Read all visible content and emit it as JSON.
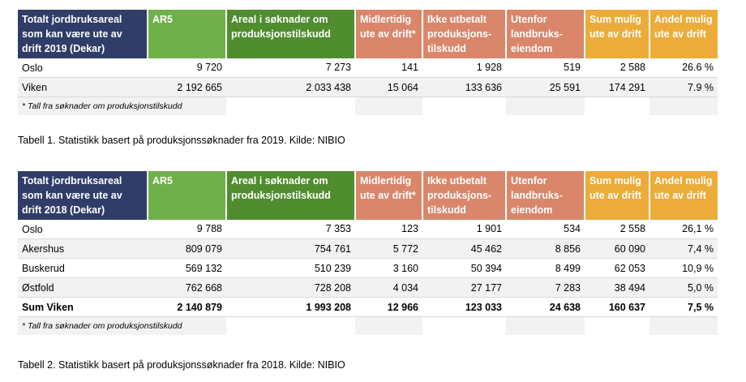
{
  "table1": {
    "headers": [
      "Totalt jordbruksareal som kan være ute av drift 2019 (Dekar)",
      "AR5",
      "Areal i søknader om produksjonstilskudd",
      "Midlertidig ute av drift*",
      "Ikke utbetalt produksjons-tilskudd",
      "Utenfor landbruks-eiendom",
      "Sum mulig ute av drift",
      "Andel mulig ute av drift"
    ],
    "rows": [
      [
        "Oslo",
        "9 720",
        "7 273",
        "141",
        "1 928",
        "519",
        "2 588",
        "26.6 %"
      ],
      [
        "Viken",
        "2 192 665",
        "2 033 438",
        "15 064",
        "133 636",
        "25 591",
        "174 291",
        "7.9 %"
      ]
    ],
    "note": "* Tall fra søknader om produksjonstilskudd",
    "caption": "Tabell 1. Statistikk basert på produksjonssøknader fra 2019. Kilde: NIBIO"
  },
  "table2": {
    "headers": [
      "Totalt jordbruksareal som kan være ute av drift 2018 (Dekar)",
      "AR5",
      "Areal i søknader om produksjonstilskudd",
      "Midlertidig ute av drift*",
      "Ikke utbetalt produksjons-tilskudd",
      "Utenfor landbruks-eiendom",
      "Sum mulig ute av drift",
      "Andel mulig ute av drift"
    ],
    "rows": [
      [
        "Oslo",
        "9 788",
        "7 353",
        "123",
        "1 901",
        "534",
        "2 558",
        "26,1 %"
      ],
      [
        "Akershus",
        "809 079",
        "754 761",
        "5 772",
        "45 462",
        "8 856",
        "60 090",
        "7,4 %"
      ],
      [
        "Buskerud",
        "569 132",
        "510 239",
        "3 160",
        "50 394",
        "8 499",
        "62 053",
        "10,9 %"
      ],
      [
        "Østfold",
        "762 668",
        "728 208",
        "4 034",
        "27 177",
        "7 283",
        "38 494",
        "5,0 %"
      ],
      [
        "Sum Viken",
        "2 140 879",
        "1 993 208",
        "12 966",
        "123 033",
        "24 638",
        "160 637",
        "7,5 %"
      ]
    ],
    "note": "* Tall fra søknader om produksjonstilskudd",
    "caption": "Tabell 2. Statistikk basert på produksjonssøknader fra 2018. Kilde: NIBIO"
  },
  "colors": {
    "navy": "#2f3d68",
    "green_light": "#70b04a",
    "green_dark": "#4f8d2e",
    "salmon": "#d9866b",
    "orange": "#ebac3a",
    "row_shade": "#f2f2f2"
  }
}
